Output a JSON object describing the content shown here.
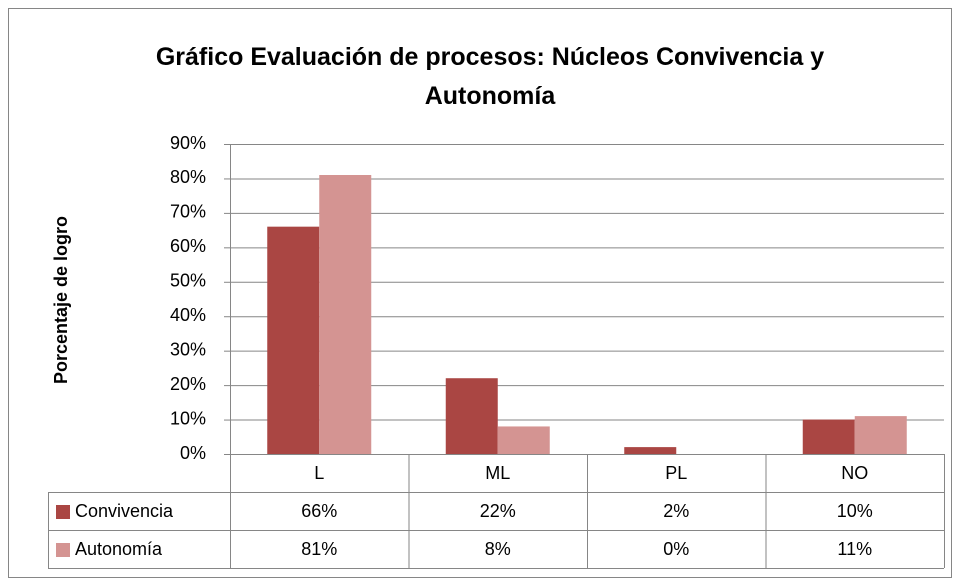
{
  "chart_data": {
    "type": "bar",
    "title": "Gráfico Evaluación de procesos: Núcleos Convivencia y Autonomía",
    "y_label": "Porcentaje de logro",
    "categories": [
      "L",
      "ML",
      "PL",
      "NO"
    ],
    "series": [
      {
        "name": "Convivencia",
        "color": "#aa4643",
        "values": [
          66,
          22,
          2,
          10
        ],
        "value_labels": [
          "66%",
          "22%",
          "2%",
          "10%"
        ]
      },
      {
        "name": "Autonomía",
        "color": "#d49492",
        "values": [
          81,
          8,
          0,
          11
        ],
        "value_labels": [
          "81%",
          "8%",
          "0%",
          "11%"
        ]
      }
    ],
    "ylim": [
      0,
      90
    ],
    "yticks": [
      {
        "value": 0,
        "label": "0%"
      },
      {
        "value": 10,
        "label": "10%"
      },
      {
        "value": 20,
        "label": "20%"
      },
      {
        "value": 30,
        "label": "30%"
      },
      {
        "value": 40,
        "label": "40%"
      },
      {
        "value": 50,
        "label": "50%"
      },
      {
        "value": 60,
        "label": "60%"
      },
      {
        "value": 70,
        "label": "70%"
      },
      {
        "value": 80,
        "label": "80%"
      },
      {
        "value": 90,
        "label": "90%"
      }
    ],
    "grid": true
  }
}
